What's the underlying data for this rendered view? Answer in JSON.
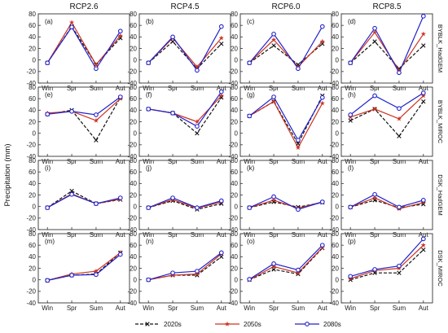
{
  "chart_data": {
    "type": "line",
    "ylabel": "Precipitation (mm)",
    "ylim": [
      -40,
      80
    ],
    "yticks": [
      -40,
      -20,
      0,
      20,
      40,
      60,
      80
    ],
    "categories": [
      "Win",
      "Spr",
      "Sum",
      "Aut"
    ],
    "columns": [
      "RCP2.6",
      "RCP4.5",
      "RCP6.0",
      "RCP8.5"
    ],
    "rows": [
      "BYBLK_HadGEM",
      "BYBLK_MIROC",
      "DSK_HadGEM",
      "DSK_MIROC"
    ],
    "legend": {
      "placement": "bottom",
      "series": [
        {
          "name": "2020s",
          "color": "#111111",
          "marker": "x",
          "dash": true
        },
        {
          "name": "2050s",
          "color": "#cc3322",
          "marker": "star",
          "dash": false
        },
        {
          "name": "2080s",
          "color": "#2222cc",
          "marker": "circle",
          "dash": false
        }
      ]
    },
    "panels": [
      {
        "label": "(a)",
        "row": 0,
        "col": 0,
        "series": [
          [
            -5,
            58,
            -8,
            38
          ],
          [
            -5,
            65,
            -8,
            42
          ],
          [
            -5,
            57,
            -15,
            50
          ]
        ]
      },
      {
        "label": "(b)",
        "row": 0,
        "col": 1,
        "series": [
          [
            -5,
            32,
            -15,
            28
          ],
          [
            -5,
            38,
            -12,
            38
          ],
          [
            -5,
            40,
            -18,
            58
          ]
        ]
      },
      {
        "label": "(c)",
        "row": 0,
        "col": 2,
        "series": [
          [
            -5,
            25,
            -8,
            28
          ],
          [
            -5,
            35,
            -12,
            32
          ],
          [
            -5,
            45,
            -15,
            58
          ]
        ]
      },
      {
        "label": "(d)",
        "row": 0,
        "col": 3,
        "series": [
          [
            -5,
            32,
            -15,
            25
          ],
          [
            -5,
            48,
            -18,
            45
          ],
          [
            -5,
            55,
            -22,
            76
          ]
        ]
      },
      {
        "label": "(e)",
        "row": 1,
        "col": 0,
        "series": [
          [
            33,
            40,
            -12,
            62
          ],
          [
            35,
            38,
            22,
            60
          ],
          [
            33,
            38,
            32,
            63
          ]
        ]
      },
      {
        "label": "(f)",
        "row": 1,
        "col": 1,
        "series": [
          [
            42,
            35,
            0,
            62
          ],
          [
            42,
            35,
            20,
            65
          ],
          [
            42,
            35,
            12,
            72
          ]
        ]
      },
      {
        "label": "(g)",
        "row": 1,
        "col": 2,
        "series": [
          [
            30,
            55,
            -18,
            65
          ],
          [
            30,
            55,
            -25,
            52
          ],
          [
            30,
            63,
            -12,
            62
          ]
        ]
      },
      {
        "label": "(h)",
        "row": 1,
        "col": 3,
        "series": [
          [
            22,
            42,
            -5,
            55
          ],
          [
            28,
            42,
            25,
            65
          ],
          [
            32,
            65,
            43,
            70
          ]
        ]
      },
      {
        "label": "(i)",
        "row": 2,
        "col": 0,
        "series": [
          [
            -2,
            27,
            5,
            12
          ],
          [
            -2,
            22,
            5,
            13
          ],
          [
            -2,
            21,
            5,
            15
          ]
        ]
      },
      {
        "label": "(j)",
        "row": 2,
        "col": 1,
        "series": [
          [
            -2,
            10,
            -5,
            5
          ],
          [
            -2,
            12,
            -3,
            8
          ],
          [
            -2,
            15,
            -2,
            10
          ]
        ]
      },
      {
        "label": "(k)",
        "row": 2,
        "col": 2,
        "series": [
          [
            -2,
            8,
            -1,
            7
          ],
          [
            -2,
            11,
            -3,
            8
          ],
          [
            -2,
            17,
            -5,
            8
          ]
        ]
      },
      {
        "label": "(l)",
        "row": 2,
        "col": 3,
        "series": [
          [
            -1,
            11,
            -2,
            4
          ],
          [
            -1,
            15,
            -4,
            7
          ],
          [
            -1,
            21,
            -1,
            11
          ]
        ]
      },
      {
        "label": "(m)",
        "row": 3,
        "col": 0,
        "series": [
          [
            -1,
            8,
            10,
            47
          ],
          [
            -1,
            10,
            15,
            47
          ],
          [
            -1,
            8,
            9,
            44
          ]
        ]
      },
      {
        "label": "(n)",
        "row": 3,
        "col": 1,
        "series": [
          [
            0,
            8,
            8,
            40
          ],
          [
            0,
            8,
            10,
            45
          ],
          [
            0,
            12,
            15,
            47
          ]
        ]
      },
      {
        "label": "(o)",
        "row": 3,
        "col": 2,
        "series": [
          [
            0,
            18,
            10,
            55
          ],
          [
            0,
            23,
            12,
            56
          ],
          [
            1,
            28,
            17,
            60
          ]
        ]
      },
      {
        "label": "(p)",
        "row": 3,
        "col": 3,
        "series": [
          [
            0,
            12,
            12,
            52
          ],
          [
            2,
            16,
            20,
            60
          ],
          [
            6,
            18,
            24,
            71
          ]
        ]
      }
    ]
  }
}
